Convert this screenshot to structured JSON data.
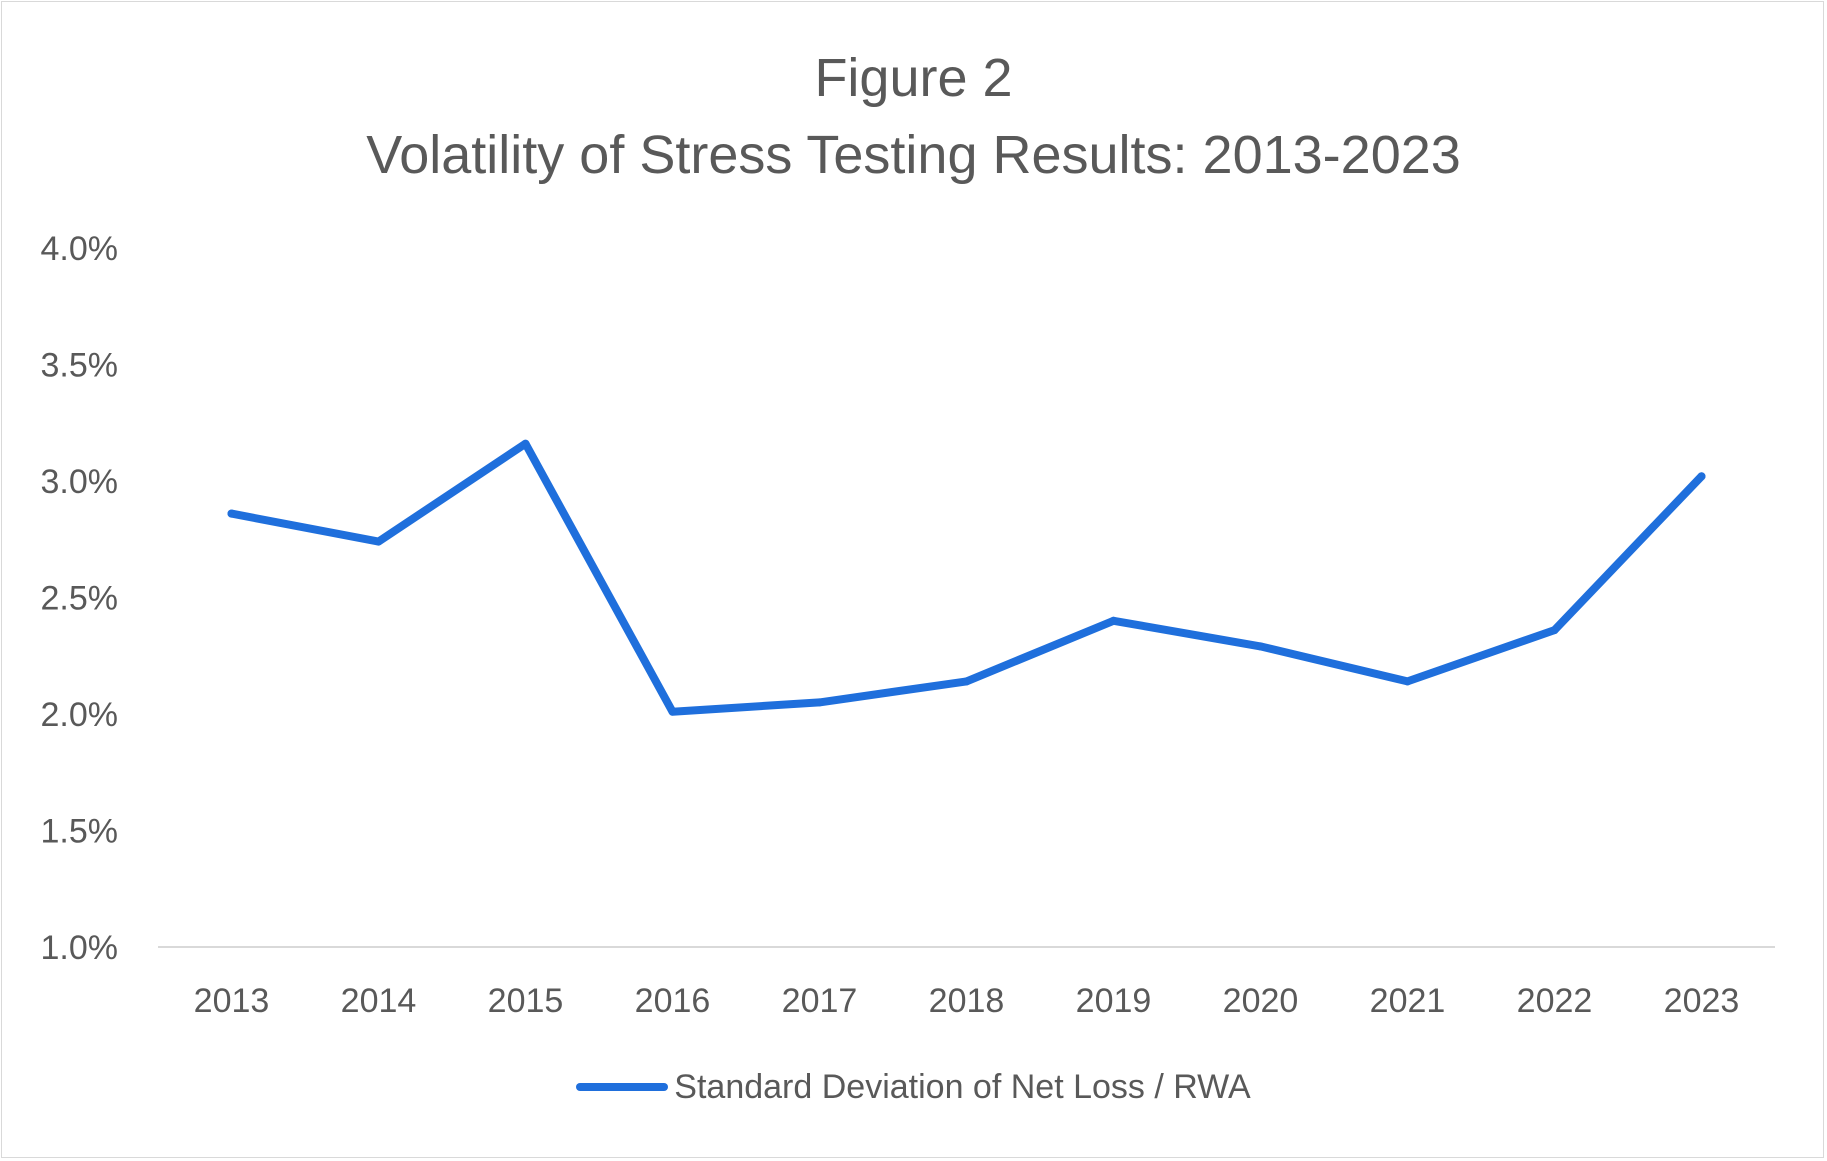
{
  "chart_data": {
    "type": "line",
    "title": "Figure 2",
    "subtitle": "Volatility of Stress Testing Results: 2013-2023",
    "xlabel": "",
    "ylabel": "",
    "categories": [
      "2013",
      "2014",
      "2015",
      "2016",
      "2017",
      "2018",
      "2019",
      "2020",
      "2021",
      "2022",
      "2023"
    ],
    "series": [
      {
        "name": "Standard Deviation of Net Loss / RWA",
        "values": [
          2.86,
          2.74,
          3.16,
          2.01,
          2.05,
          2.14,
          2.4,
          2.29,
          2.14,
          2.36,
          3.02
        ],
        "color": "#1f6fdc"
      }
    ],
    "ylim": [
      1.0,
      4.0
    ],
    "yticks": [
      "1.0%",
      "1.5%",
      "2.0%",
      "2.5%",
      "3.0%",
      "3.5%",
      "4.0%"
    ],
    "ytick_values": [
      1.0,
      1.5,
      2.0,
      2.5,
      3.0,
      3.5,
      4.0
    ],
    "grid": false,
    "legend_position": "bottom"
  },
  "colors": {
    "text": "#595959",
    "axis": "#d9d9d9",
    "border": "#d9d9d9"
  }
}
